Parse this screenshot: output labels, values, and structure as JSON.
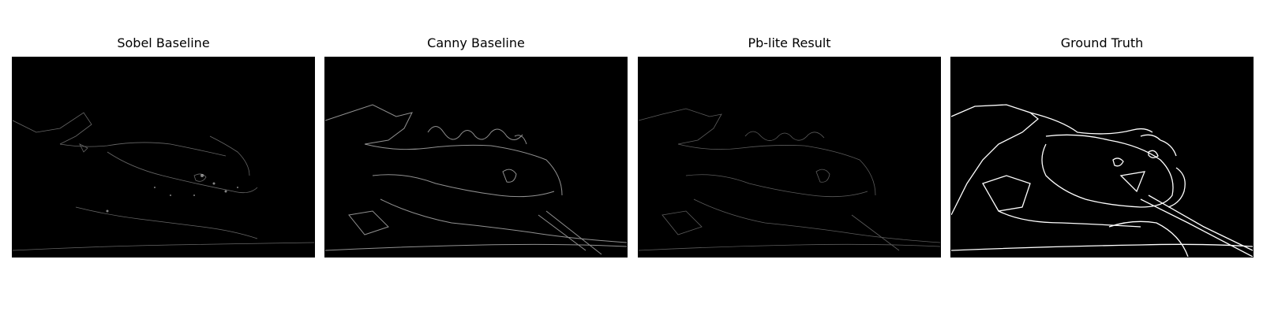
{
  "panels": [
    {
      "title": "Sobel Baseline",
      "image_color": "#000000"
    },
    {
      "title": "Canny Baseline",
      "image_color": "#000000"
    },
    {
      "title": "Pb-lite Result",
      "image_color": "#000000"
    },
    {
      "title": "Ground Truth",
      "image_color": "#000000"
    }
  ]
}
